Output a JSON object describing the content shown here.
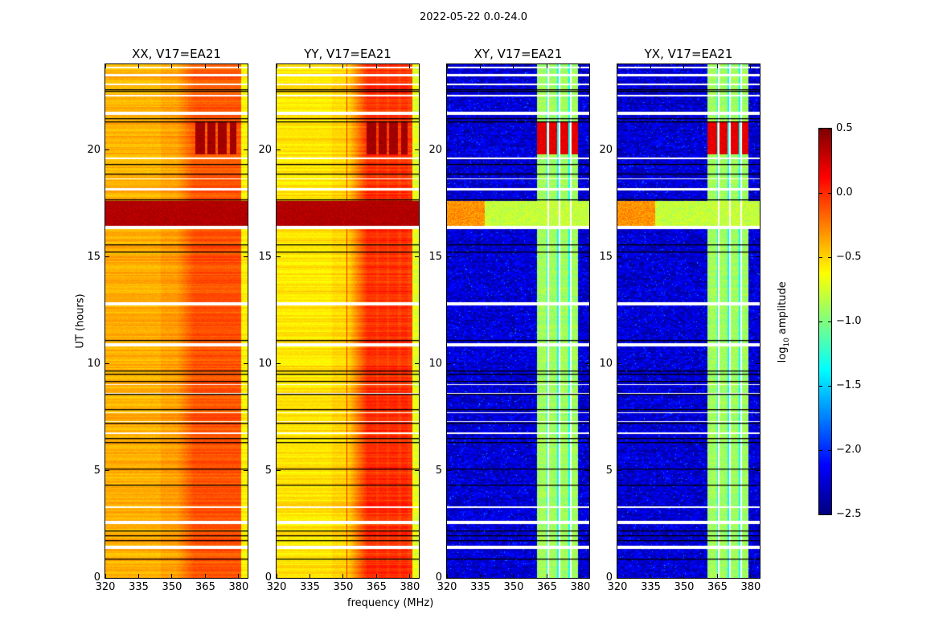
{
  "chart_data": {
    "type": "heatmap",
    "title": "2022-05-22 0.0-24.0",
    "panels": [
      {
        "title": "XX, V17=EA21",
        "kind": "parallel",
        "base": -0.35,
        "band_level": -0.12,
        "edge_level": -0.6
      },
      {
        "title": "YY, V17=EA21",
        "kind": "parallel",
        "base": -0.5,
        "band_level": -0.05,
        "edge_level": -0.7,
        "narrow_rfi_mhz": 351.7
      },
      {
        "title": "XY, V17=EA21",
        "kind": "cross",
        "base": -2.25,
        "band_level": -0.9,
        "edge_level": -2.3
      },
      {
        "title": "YX, V17=EA21",
        "kind": "cross",
        "base": -2.25,
        "band_level": -0.9,
        "edge_level": -2.3
      }
    ],
    "x": {
      "label": "frequency (MHz)",
      "range": [
        320,
        384
      ],
      "ticks": [
        320,
        335,
        350,
        365,
        380
      ]
    },
    "y": {
      "label": "UT (hours)",
      "range": [
        0,
        24
      ],
      "ticks": [
        0,
        5,
        10,
        15,
        20
      ]
    },
    "rfi_channels_mhz": [
      [
        360.5,
        364.7
      ],
      [
        365.8,
        369.4
      ],
      [
        370.8,
        374.7
      ],
      [
        375.9,
        379.1
      ]
    ],
    "events": [
      {
        "hours": [
          16.45,
          17.6
        ],
        "parallel_level": 0.35,
        "cross_level": -0.8
      },
      {
        "hours": [
          19.8,
          21.3
        ],
        "parallel_level": 0.4,
        "cross_level": 0.2,
        "channels_only": true
      }
    ],
    "flagged_hours": [
      [
        1.35,
        1.5
      ],
      [
        2.5,
        2.65
      ],
      [
        3.25,
        3.33
      ],
      [
        6.72,
        6.78
      ],
      [
        7.3,
        7.34
      ],
      [
        7.7,
        7.74
      ],
      [
        8.6,
        8.64
      ],
      [
        9.0,
        9.04
      ],
      [
        10.8,
        10.95
      ],
      [
        12.75,
        12.9
      ],
      [
        16.3,
        16.45
      ],
      [
        18.1,
        18.2
      ],
      [
        18.63,
        18.68
      ],
      [
        19.58,
        19.63
      ],
      [
        21.65,
        21.8
      ],
      [
        22.48,
        22.56
      ],
      [
        23.03,
        23.08
      ],
      [
        23.45,
        23.56
      ],
      [
        23.83,
        23.88
      ]
    ],
    "scan_boundaries_hours": [
      0.9,
      1.75,
      2.0,
      2.2,
      4.35,
      5.1,
      6.35,
      6.55,
      7.25,
      7.9,
      8.6,
      9.2,
      9.55,
      9.7,
      11.1,
      15.25,
      15.6,
      17.7,
      18.9,
      19.35,
      21.35,
      21.5,
      22.75,
      22.85
    ],
    "colorbar": {
      "label_main": "log",
      "label_sub": "10",
      "label_rest": " amplitude",
      "range": [
        -2.5,
        0.5
      ],
      "ticks": [
        "0.5",
        "0.0",
        "−0.5",
        "−1.0",
        "−1.5",
        "−2.0",
        "−2.5"
      ],
      "tick_values": [
        0.5,
        0,
        -0.5,
        -1,
        -1.5,
        -2,
        -2.5
      ],
      "colormap": "jet"
    }
  }
}
